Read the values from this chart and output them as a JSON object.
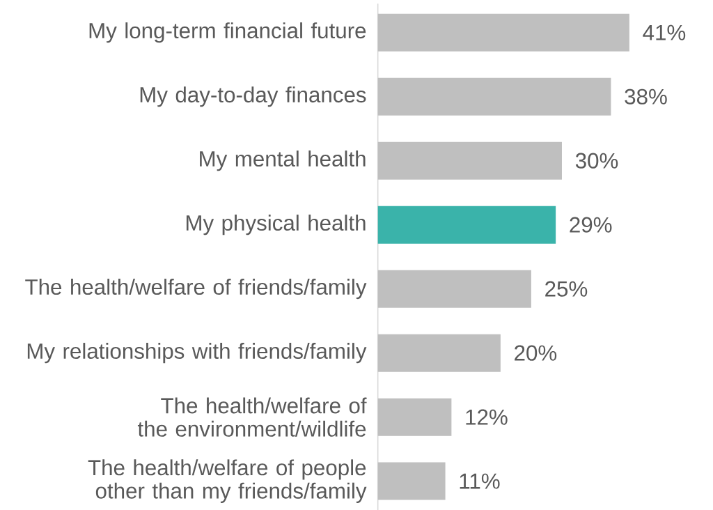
{
  "chart_data": {
    "type": "bar",
    "orientation": "horizontal",
    "categories": [
      "My long-term financial future",
      "My day-to-day finances",
      "My mental health",
      "My physical health",
      "The health/welfare of friends/family",
      "My relationships with friends/family",
      "The health/welfare of the environment/wildlife",
      "The health/welfare of people other than my friends/family"
    ],
    "values": [
      41,
      38,
      30,
      29,
      25,
      20,
      12,
      11
    ],
    "colors": [
      "#bfbfbf",
      "#bfbfbf",
      "#bfbfbf",
      "#3ab3aa",
      "#bfbfbf",
      "#bfbfbf",
      "#bfbfbf",
      "#bfbfbf"
    ],
    "value_labels": [
      "41%",
      "38%",
      "30%",
      "29%",
      "25%",
      "20%",
      "12%",
      "11%"
    ],
    "tick_labels": "y"
  }
}
